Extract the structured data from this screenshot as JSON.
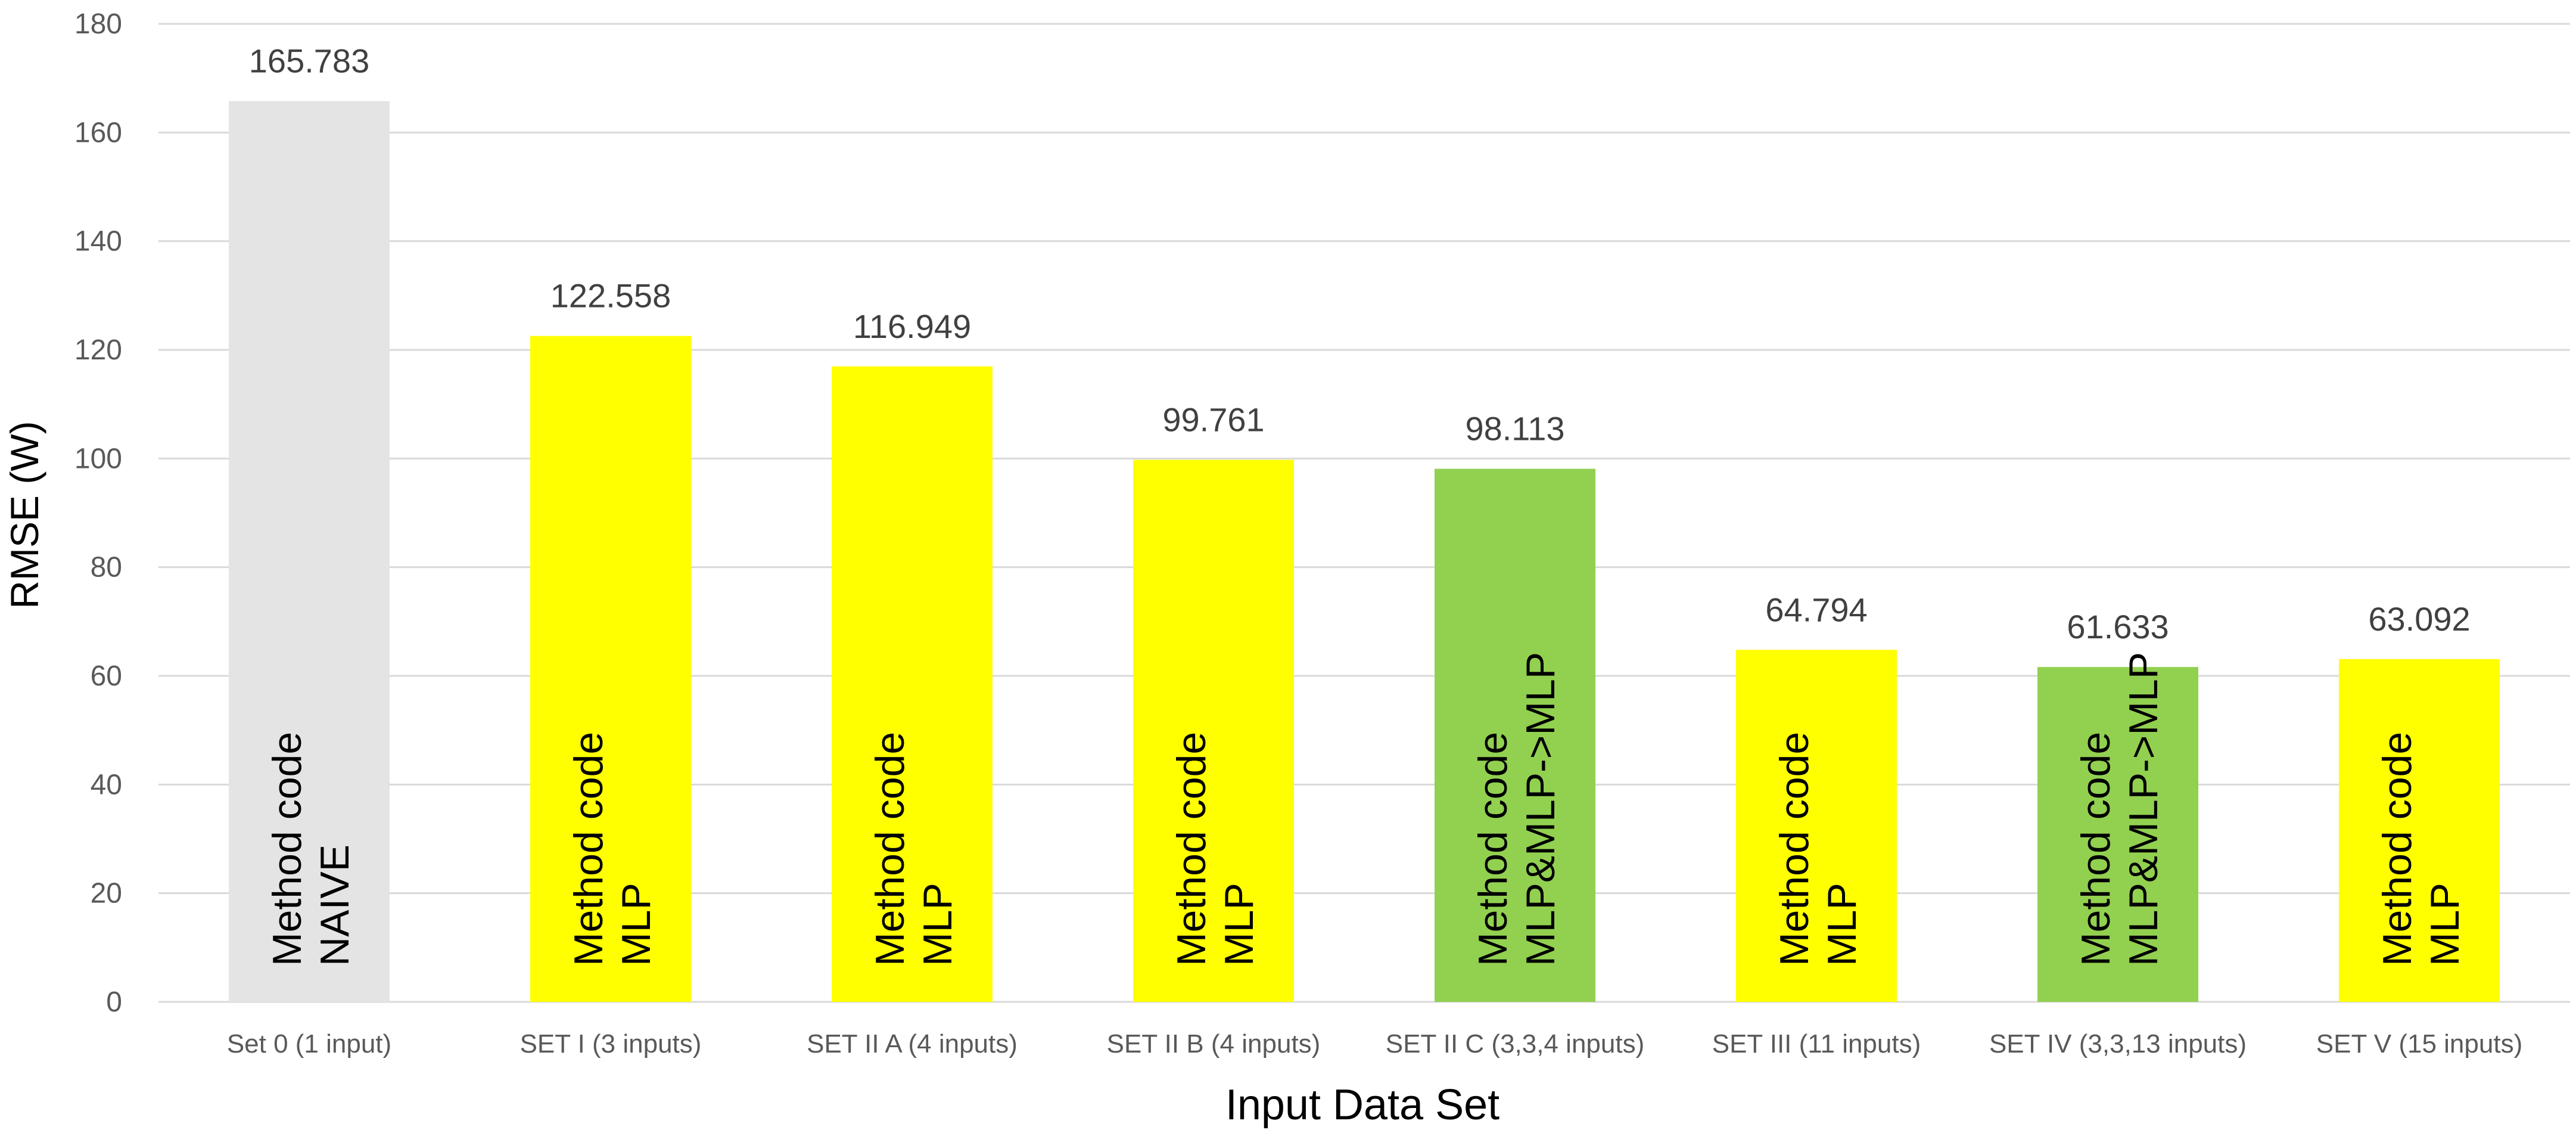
{
  "chart_data": {
    "type": "bar",
    "title": "",
    "xlabel": "Input Data Set",
    "ylabel": "RMSE (W)",
    "ylim": [
      0,
      180
    ],
    "yticks": [
      0,
      20,
      40,
      60,
      80,
      100,
      120,
      140,
      160,
      180
    ],
    "grid": true,
    "legend": "none",
    "categories": [
      "Set 0 (1 input)",
      "SET I (3 inputs)",
      "SET II A (4 inputs)",
      "SET II B (4 inputs)",
      "SET II C (3,3,4 inputs)",
      "SET III (11 inputs)",
      "SET IV (3,3,13 inputs)",
      "SET V (15 inputs)"
    ],
    "values": [
      165.783,
      122.558,
      116.949,
      99.761,
      98.113,
      64.794,
      61.633,
      63.092
    ],
    "value_labels": [
      "165.783",
      "122.558",
      "116.949",
      "99.761",
      "98.113",
      "64.794",
      "61.633",
      "63.092"
    ],
    "bar_labels": [
      [
        "Method code",
        "NAIVE"
      ],
      [
        "Method code",
        "MLP"
      ],
      [
        "Method code",
        "MLP"
      ],
      [
        "Method code",
        "MLP"
      ],
      [
        "Method code",
        "MLP&MLP->MLP"
      ],
      [
        "Method code",
        "MLP"
      ],
      [
        "Method code",
        "MLP&MLP->MLP"
      ],
      [
        "Method code",
        "MLP"
      ]
    ],
    "bar_colors": [
      "#e4e4e4",
      "#ffff00",
      "#ffff00",
      "#ffff00",
      "#92d050",
      "#ffff00",
      "#92d050",
      "#ffff00"
    ],
    "gridline_color": "#d9d9d9"
  }
}
